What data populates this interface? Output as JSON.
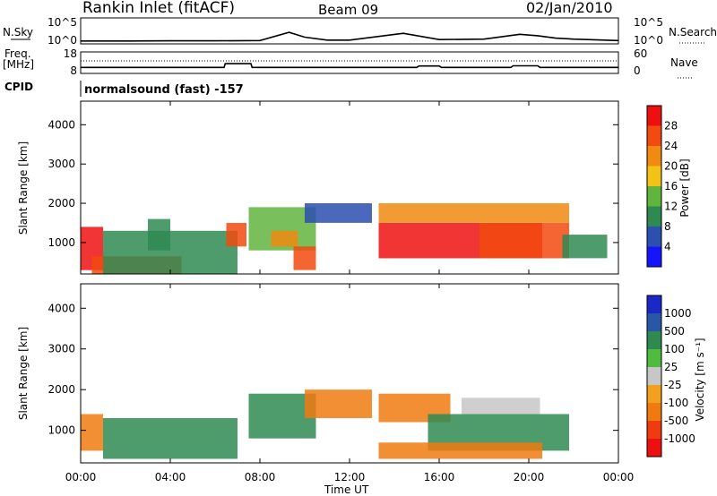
{
  "header": {
    "station": "Rankin Inlet (fitACF)",
    "beam": "Beam 09",
    "date": "02/Jan/2010"
  },
  "strips": {
    "nsky_label": "N.Sky",
    "nsearch_label": "N.Search",
    "nsky_ticks": [
      "10^5",
      "10^0"
    ],
    "nsearch_ticks": [
      "10^5",
      "10^0"
    ],
    "freq_label": "Freq.",
    "freq_unit": "[MHz]",
    "freq_ticks": [
      "18",
      "8"
    ],
    "nave_label": "Nave",
    "nave_ticks": [
      "60",
      "0"
    ],
    "cpid_label": "CPID",
    "cpid_text": "normalsound (fast) -157"
  },
  "panels": {
    "ylabel": "Slant Range [km]",
    "xlabel": "Time UT",
    "ytick_labels": [
      "1000",
      "2000",
      "3000",
      "4000"
    ],
    "xtick_labels": [
      "00:00",
      "04:00",
      "08:00",
      "12:00",
      "16:00",
      "20:00",
      "00:00"
    ]
  },
  "power_scale": {
    "label": "Power [dB]",
    "ticks": [
      "4",
      "8",
      "12",
      "16",
      "20",
      "24",
      "28"
    ],
    "colors": [
      "#1414ff",
      "#2c4fb0",
      "#2f8a52",
      "#61b53f",
      "#f2c316",
      "#f08a10",
      "#f24a0f",
      "#ee1010"
    ]
  },
  "velocity_scale": {
    "label": "Velocity [m s⁻¹]",
    "ticks": [
      "1000",
      "500",
      "100",
      "25",
      "-25",
      "-100",
      "-500",
      "-1000"
    ],
    "colors": [
      "#1a28c8",
      "#2a56a8",
      "#2f8a52",
      "#4fbb3f",
      "#c7c7c7",
      "#f2a020",
      "#f07a10",
      "#f03a10",
      "#ee1010"
    ]
  },
  "chart_data": [
    {
      "type": "line",
      "name": "N.Sky / N.Search",
      "x": [
        0,
        2,
        4,
        6,
        8,
        9.3,
        10,
        11,
        12,
        14.4,
        16,
        18,
        19.6,
        20.4,
        21.2,
        22,
        24
      ],
      "values": [
        0.4,
        0.4,
        0.45,
        0.45,
        0.5,
        2.2,
        1.2,
        0.6,
        0.6,
        2.0,
        0.7,
        0.8,
        1.8,
        1.5,
        1.0,
        0.8,
        0.5
      ]
    },
    {
      "type": "line",
      "name": "Freq. / Nave",
      "x": [
        0,
        6.4,
        6.45,
        7.6,
        7.65,
        15.0,
        15.1,
        16.0,
        16.1,
        19.2,
        19.3,
        20.4,
        20.5,
        24
      ],
      "values": [
        10.6,
        10.6,
        12.5,
        12.5,
        10.6,
        10.6,
        11.3,
        11.3,
        10.6,
        10.6,
        11.4,
        11.4,
        10.6,
        10.6
      ]
    },
    {
      "type": "heatmap",
      "name": "Power [dB]",
      "x_unit": "hours UT",
      "y_unit": "km",
      "xlim": [
        0,
        24
      ],
      "ylim": [
        200,
        4600
      ],
      "color_scale": [
        4,
        8,
        12,
        16,
        20,
        24,
        28
      ],
      "regions": [
        {
          "x": [
            0,
            1.0
          ],
          "y": [
            300,
            1400
          ],
          "value": 28
        },
        {
          "x": [
            0.5,
            4.5
          ],
          "y": [
            200,
            650
          ],
          "value": 26
        },
        {
          "x": [
            1.0,
            7.0
          ],
          "y": [
            200,
            1300
          ],
          "value": 8
        },
        {
          "x": [
            3.0,
            4.0
          ],
          "y": [
            800,
            1600
          ],
          "value": 10
        },
        {
          "x": [
            6.5,
            7.4
          ],
          "y": [
            900,
            1500
          ],
          "value": 24
        },
        {
          "x": [
            7.5,
            10.5
          ],
          "y": [
            800,
            1900
          ],
          "value": 14
        },
        {
          "x": [
            8.5,
            9.7
          ],
          "y": [
            900,
            1300
          ],
          "value": 22
        },
        {
          "x": [
            9.5,
            10.5
          ],
          "y": [
            300,
            900
          ],
          "value": 26
        },
        {
          "x": [
            10.0,
            13.0
          ],
          "y": [
            1500,
            2000
          ],
          "value": 6
        },
        {
          "x": [
            13.3,
            20.6
          ],
          "y": [
            600,
            1500
          ],
          "value": 28
        },
        {
          "x": [
            13.3,
            21.8
          ],
          "y": [
            1500,
            2000
          ],
          "value": 20
        },
        {
          "x": [
            17.8,
            21.8
          ],
          "y": [
            600,
            1500
          ],
          "value": 27
        },
        {
          "x": [
            21.5,
            23.5
          ],
          "y": [
            600,
            1200
          ],
          "value": 10
        }
      ]
    },
    {
      "type": "heatmap",
      "name": "Velocity [m s-1]",
      "x_unit": "hours UT",
      "y_unit": "km",
      "xlim": [
        0,
        24
      ],
      "ylim": [
        200,
        4600
      ],
      "color_scale": [
        1000,
        500,
        100,
        25,
        -25,
        -100,
        -500,
        -1000
      ],
      "regions": [
        {
          "x": [
            0,
            1.0
          ],
          "y": [
            500,
            1400
          ],
          "value": -300
        },
        {
          "x": [
            1.0,
            7.0
          ],
          "y": [
            300,
            1300
          ],
          "value": 150
        },
        {
          "x": [
            7.5,
            10.5
          ],
          "y": [
            800,
            1900
          ],
          "value": 200
        },
        {
          "x": [
            10.0,
            13.0
          ],
          "y": [
            1300,
            2000
          ],
          "value": -400
        },
        {
          "x": [
            13.3,
            16.5
          ],
          "y": [
            1200,
            1900
          ],
          "value": -300
        },
        {
          "x": [
            15.5,
            21.8
          ],
          "y": [
            500,
            1400
          ],
          "value": 150
        },
        {
          "x": [
            17.0,
            20.5
          ],
          "y": [
            1400,
            1800
          ],
          "value": 0
        },
        {
          "x": [
            13.3,
            20.6
          ],
          "y": [
            300,
            700
          ],
          "value": -200
        }
      ]
    }
  ]
}
